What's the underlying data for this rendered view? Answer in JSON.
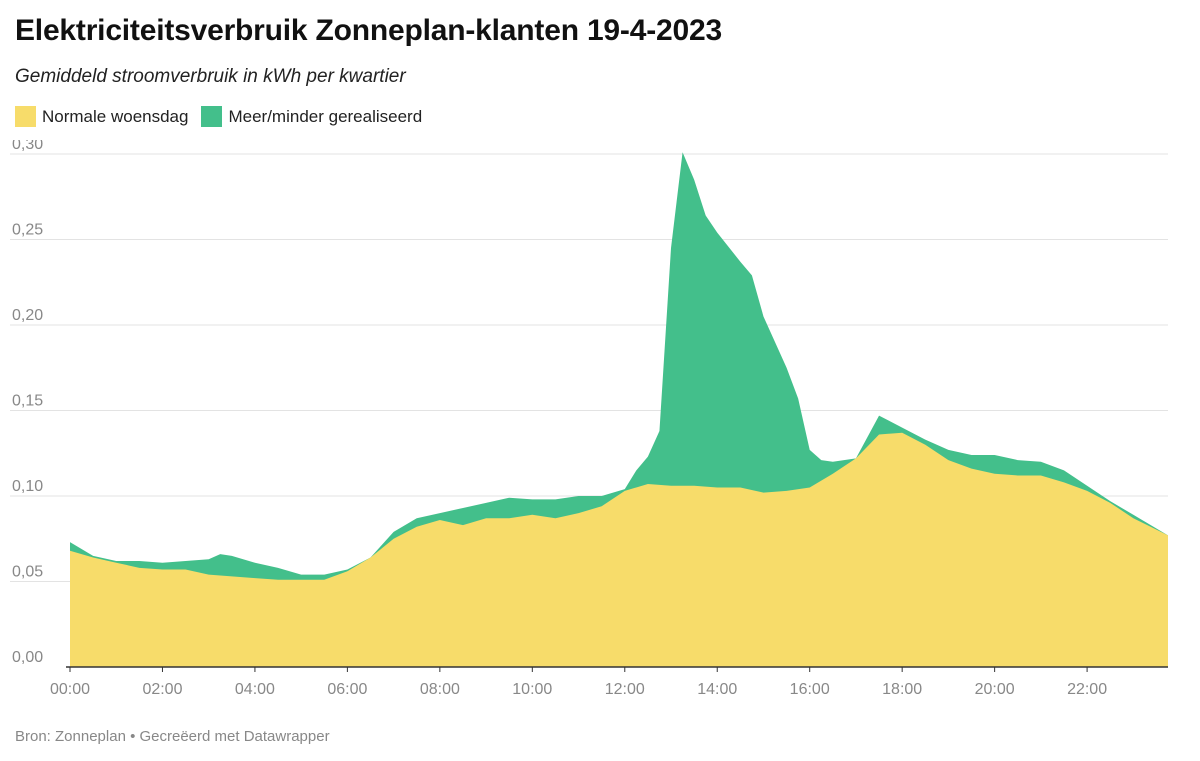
{
  "title": "Elektriciteitsverbruik Zonneplan-klanten 19-4-2023",
  "subtitle": "Gemiddeld stroomverbruik in kWh per kwartier",
  "footer": "Bron: Zonneplan • Gecreëerd met Datawrapper",
  "colors": {
    "normal": "#f7dc6a",
    "more_less": "#43bf8b",
    "more_less_dark": "#3cb560",
    "grid": "#e3e3e3",
    "axis": "#333333"
  },
  "chart_data": {
    "type": "area",
    "legend_position": "top-left",
    "grid": true,
    "xlim": [
      0,
      23.75
    ],
    "ylim": [
      0,
      0.3
    ],
    "yticks": [
      "0,00",
      "0,05",
      "0,10",
      "0,15",
      "0,20",
      "0,25",
      "0,30"
    ],
    "ytick_values": [
      0,
      0.05,
      0.1,
      0.15,
      0.2,
      0.25,
      0.3
    ],
    "xticks": [
      "00:00",
      "02:00",
      "04:00",
      "06:00",
      "08:00",
      "10:00",
      "12:00",
      "14:00",
      "16:00",
      "18:00",
      "20:00",
      "22:00"
    ],
    "xtick_values": [
      0,
      2,
      4,
      6,
      8,
      10,
      12,
      14,
      16,
      18,
      20,
      22
    ],
    "series": [
      {
        "name": "Normale woensdag",
        "points": [
          [
            0,
            0.068
          ],
          [
            0.5,
            0.064
          ],
          [
            1,
            0.061
          ],
          [
            1.5,
            0.058
          ],
          [
            2,
            0.057
          ],
          [
            2.5,
            0.057
          ],
          [
            3,
            0.054
          ],
          [
            3.5,
            0.053
          ],
          [
            4,
            0.052
          ],
          [
            4.5,
            0.051
          ],
          [
            5,
            0.051
          ],
          [
            5.5,
            0.051
          ],
          [
            6,
            0.056
          ],
          [
            6.5,
            0.064
          ],
          [
            7,
            0.075
          ],
          [
            7.5,
            0.082
          ],
          [
            8,
            0.086
          ],
          [
            8.5,
            0.083
          ],
          [
            9,
            0.087
          ],
          [
            9.5,
            0.087
          ],
          [
            10,
            0.089
          ],
          [
            10.5,
            0.087
          ],
          [
            11,
            0.09
          ],
          [
            11.5,
            0.094
          ],
          [
            12,
            0.103
          ],
          [
            12.5,
            0.107
          ],
          [
            13,
            0.106
          ],
          [
            13.5,
            0.106
          ],
          [
            14,
            0.105
          ],
          [
            14.5,
            0.105
          ],
          [
            15,
            0.102
          ],
          [
            15.5,
            0.103
          ],
          [
            16,
            0.105
          ],
          [
            16.5,
            0.113
          ],
          [
            17,
            0.122
          ],
          [
            17.5,
            0.136
          ],
          [
            18,
            0.137
          ],
          [
            18.5,
            0.13
          ],
          [
            19,
            0.121
          ],
          [
            19.5,
            0.116
          ],
          [
            20,
            0.113
          ],
          [
            20.5,
            0.112
          ],
          [
            21,
            0.112
          ],
          [
            21.5,
            0.108
          ],
          [
            22,
            0.103
          ],
          [
            22.5,
            0.096
          ],
          [
            23,
            0.087
          ],
          [
            23.75,
            0.077
          ]
        ]
      },
      {
        "name": "Meer/minder gerealiseerd",
        "points": [
          [
            0,
            0.073
          ],
          [
            0.5,
            0.065
          ],
          [
            1,
            0.062
          ],
          [
            1.5,
            0.062
          ],
          [
            2,
            0.061
          ],
          [
            2.5,
            0.062
          ],
          [
            3,
            0.063
          ],
          [
            3.25,
            0.066
          ],
          [
            3.5,
            0.065
          ],
          [
            4,
            0.061
          ],
          [
            4.5,
            0.058
          ],
          [
            5,
            0.054
          ],
          [
            5.5,
            0.054
          ],
          [
            6,
            0.057
          ],
          [
            6.5,
            0.064
          ],
          [
            7,
            0.079
          ],
          [
            7.5,
            0.087
          ],
          [
            8,
            0.09
          ],
          [
            8.5,
            0.093
          ],
          [
            9,
            0.096
          ],
          [
            9.5,
            0.099
          ],
          [
            10,
            0.098
          ],
          [
            10.5,
            0.098
          ],
          [
            11,
            0.1
          ],
          [
            11.5,
            0.1
          ],
          [
            12,
            0.104
          ],
          [
            12.25,
            0.115
          ],
          [
            12.5,
            0.123
          ],
          [
            12.75,
            0.138
          ],
          [
            13,
            0.245
          ],
          [
            13.25,
            0.301
          ],
          [
            13.5,
            0.285
          ],
          [
            13.75,
            0.264
          ],
          [
            14,
            0.254
          ],
          [
            14.5,
            0.237
          ],
          [
            14.75,
            0.229
          ],
          [
            15,
            0.205
          ],
          [
            15.5,
            0.175
          ],
          [
            15.75,
            0.157
          ],
          [
            16,
            0.127
          ],
          [
            16.25,
            0.121
          ],
          [
            16.5,
            0.12
          ],
          [
            17,
            0.122
          ],
          [
            17.5,
            0.147
          ],
          [
            18,
            0.14
          ],
          [
            18.5,
            0.133
          ],
          [
            19,
            0.127
          ],
          [
            19.5,
            0.124
          ],
          [
            20,
            0.124
          ],
          [
            20.5,
            0.121
          ],
          [
            21,
            0.12
          ],
          [
            21.5,
            0.115
          ],
          [
            22,
            0.106
          ],
          [
            22.5,
            0.097
          ],
          [
            23,
            0.089
          ],
          [
            23.75,
            0.077
          ]
        ]
      }
    ]
  }
}
